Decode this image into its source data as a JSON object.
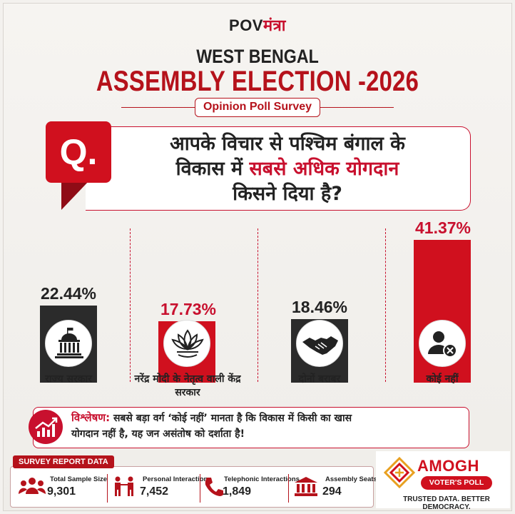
{
  "brand": {
    "part1": "POV",
    "part2": "मंत्रा"
  },
  "header": {
    "subtitle": "WEST BENGAL",
    "title": "ASSEMBLY ELECTION -2026",
    "badge": "Opinion Poll Survey"
  },
  "question": {
    "badge": "Q.",
    "line1": "आपके विचार से पश्चिम बंगाल के",
    "line2_pre": "विकास में ",
    "line2_highlight": "सबसे अधिक योगदान",
    "line3": "किसने दिया है?"
  },
  "chart_data": {
    "type": "bar",
    "categories": [
      "राज्य सरकार",
      "नरेंद्र मोदी के नेतृत्व वाली केंद्र सरकार",
      "दोनों बराबर",
      "कोई नहीं"
    ],
    "values": [
      22.44,
      17.73,
      18.46,
      41.37
    ],
    "value_labels": [
      "22.44%",
      "17.73%",
      "18.46%",
      "41.37%"
    ],
    "colors": [
      "#2b2b2b",
      "#d0101e",
      "#2b2b2b",
      "#d0101e"
    ],
    "label_colors": [
      "#222222",
      "#c8102e",
      "#222222",
      "#c8102e"
    ],
    "icons": [
      "government-building-icon",
      "bjp-lotus-icon",
      "handshake-icon",
      "user-cross-icon"
    ]
  },
  "analysis": {
    "label": "विश्लेषण:",
    "text1": " सबसे बड़ा वर्ग ‘कोई नहीं’ मानता है कि विकास में किसी का खास",
    "text2": "योगदान नहीं है, यह जन असंतोष को दर्शाता है!"
  },
  "survey": {
    "heading": "SURVEY REPORT DATA",
    "stats": [
      {
        "label": "Total Sample Size",
        "value": "9,301",
        "icon": "people-icon"
      },
      {
        "label": "Personal Interactions",
        "value": "7,452",
        "icon": "two-persons-icon"
      },
      {
        "label": "Telephonic Interactions",
        "value": "1,849",
        "icon": "phone-icon"
      },
      {
        "label": "Assembly Seats",
        "value": "294",
        "icon": "assembly-building-icon"
      }
    ]
  },
  "amogh": {
    "name": "AMOGH",
    "pill": "VOTER'S POLL",
    "tagline": "TRUSTED DATA. BETTER DEMOCRACY."
  }
}
